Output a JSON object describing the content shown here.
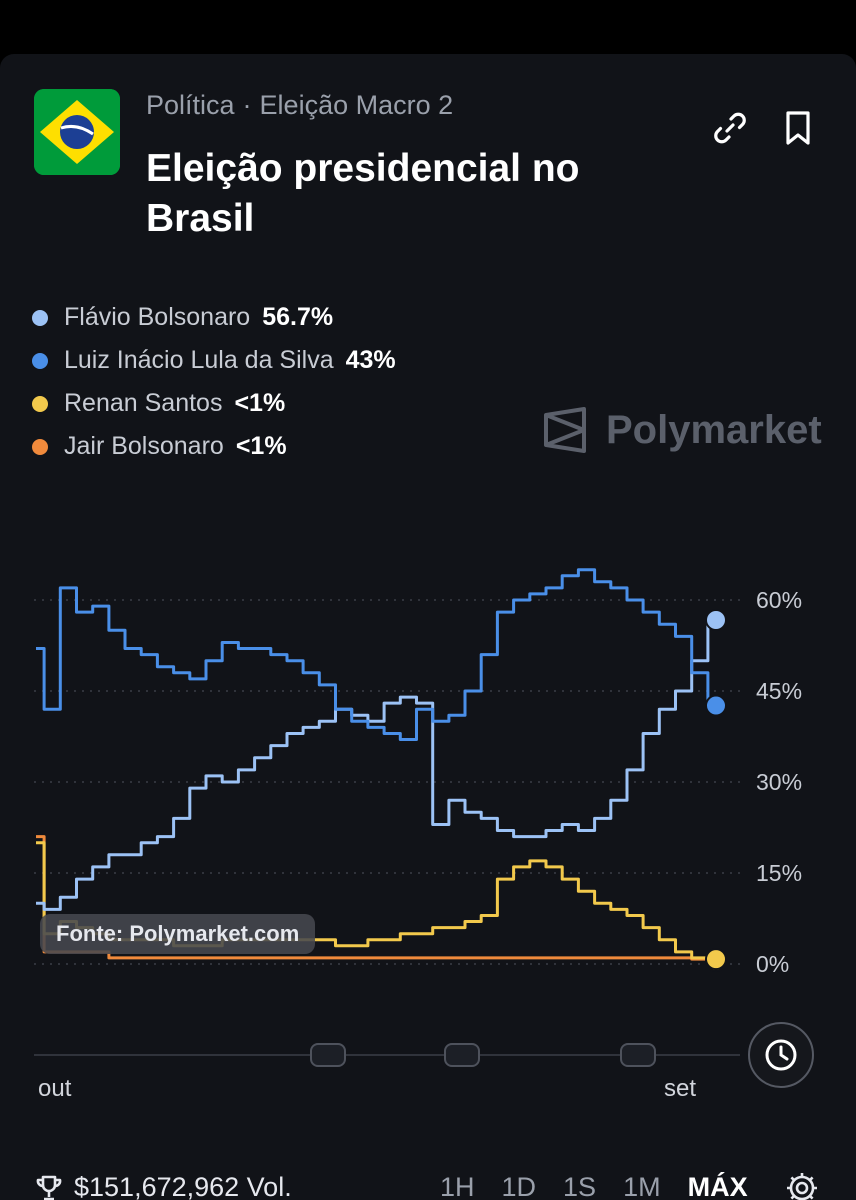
{
  "header": {
    "category": "Política",
    "separator": "·",
    "subcategory": "Eleição Macro 2",
    "title": "Eleição presidencial no Brasil",
    "icons": [
      "link-icon",
      "bookmark-icon"
    ]
  },
  "watermark": {
    "text": "Polymarket"
  },
  "source_badge": "Fonte: Polymarket.com",
  "chart_data": {
    "type": "line",
    "x_labels": {
      "start": "out",
      "end": "set"
    },
    "yticks": [
      {
        "value": 0,
        "label": "0%"
      },
      {
        "value": 15,
        "label": "15%"
      },
      {
        "value": 30,
        "label": "30%"
      },
      {
        "value": 45,
        "label": "45%"
      },
      {
        "value": 60,
        "label": "60%"
      }
    ],
    "ylim": [
      0,
      60
    ],
    "grid": true,
    "legend_position": "top-left",
    "series": [
      {
        "name": "Flávio Bolsonaro",
        "display": "56.7%",
        "color": "#9cc2f5",
        "values": [
          10,
          9,
          11,
          14,
          16,
          18,
          18,
          20,
          21,
          24,
          29,
          31,
          30,
          32,
          34,
          36,
          38,
          39,
          40,
          42,
          41,
          40,
          43,
          44,
          43,
          23,
          27,
          25,
          24,
          22,
          21,
          21,
          22,
          23,
          22,
          24,
          27,
          32,
          38,
          42,
          45,
          50,
          56.7
        ]
      },
      {
        "name": "Luiz Inácio Lula da Silva",
        "display": "43%",
        "color": "#4a8fe8",
        "values": [
          52,
          42,
          62,
          58,
          59,
          55,
          52,
          51,
          49,
          48,
          47,
          50,
          53,
          52,
          52,
          51,
          50,
          48,
          46,
          42,
          40,
          39,
          38,
          37,
          42,
          40,
          41,
          45,
          51,
          58,
          60,
          61,
          62,
          64,
          65,
          63,
          62,
          60,
          58,
          56,
          54,
          48,
          42.6
        ]
      },
      {
        "name": "Renan Santos",
        "display": "<1%",
        "color": "#f2c94c",
        "values": [
          20,
          5,
          7,
          6,
          5,
          4,
          4,
          4,
          4,
          3,
          3,
          3,
          4,
          4,
          4,
          4,
          4,
          4,
          4,
          3,
          3,
          4,
          4,
          5,
          5,
          6,
          6,
          7,
          8,
          14,
          16,
          17,
          16,
          14,
          12,
          10,
          9,
          8,
          6,
          4,
          2,
          1,
          0.8
        ]
      },
      {
        "name": "Jair Bolsonaro",
        "display": "<1%",
        "color": "#f08a3c",
        "values": [
          21,
          2,
          2,
          2,
          2,
          1,
          1,
          1,
          1,
          1,
          1,
          1,
          1,
          1,
          1,
          1,
          1,
          1,
          1,
          1,
          1,
          1,
          1,
          1,
          1,
          1,
          1,
          1,
          1,
          1,
          1,
          1,
          1,
          1,
          1,
          1,
          1,
          1,
          1,
          1,
          1,
          0.8,
          0.5
        ]
      }
    ]
  },
  "scrubber": {
    "icon": "clock-icon"
  },
  "footer": {
    "volume": "$151,672,962 Vol.",
    "ranges": [
      "1H",
      "1D",
      "1S",
      "1M",
      "MÁX"
    ],
    "active_range": "MÁX"
  }
}
